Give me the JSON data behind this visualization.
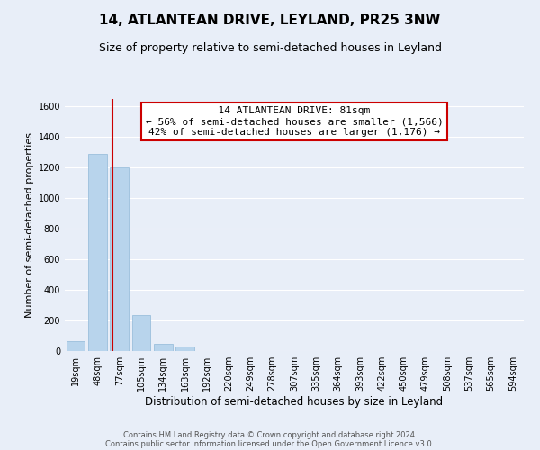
{
  "title": "14, ATLANTEAN DRIVE, LEYLAND, PR25 3NW",
  "subtitle": "Size of property relative to semi-detached houses in Leyland",
  "xlabel": "Distribution of semi-detached houses by size in Leyland",
  "ylabel": "Number of semi-detached properties",
  "footer_line1": "Contains HM Land Registry data © Crown copyright and database right 2024.",
  "footer_line2": "Contains public sector information licensed under the Open Government Licence v3.0.",
  "bar_labels": [
    "19sqm",
    "48sqm",
    "77sqm",
    "105sqm",
    "134sqm",
    "163sqm",
    "192sqm",
    "220sqm",
    "249sqm",
    "278sqm",
    "307sqm",
    "335sqm",
    "364sqm",
    "393sqm",
    "422sqm",
    "450sqm",
    "479sqm",
    "508sqm",
    "537sqm",
    "565sqm",
    "594sqm"
  ],
  "bar_values": [
    65,
    1290,
    1200,
    235,
    50,
    30,
    0,
    0,
    0,
    0,
    0,
    0,
    0,
    0,
    0,
    0,
    0,
    0,
    0,
    0,
    0
  ],
  "bar_color": "#b8d4ec",
  "bar_edge_color": "#90b8d8",
  "annotation_title": "14 ATLANTEAN DRIVE: 81sqm",
  "annotation_line1": "← 56% of semi-detached houses are smaller (1,566)",
  "annotation_line2": "42% of semi-detached houses are larger (1,176) →",
  "vline_color": "#cc0000",
  "annotation_box_color": "#ffffff",
  "annotation_box_edge": "#cc0000",
  "ylim": [
    0,
    1650
  ],
  "yticks": [
    0,
    200,
    400,
    600,
    800,
    1000,
    1200,
    1400,
    1600
  ],
  "background_color": "#e8eef8",
  "plot_background": "#e8eef8",
  "title_fontsize": 11,
  "subtitle_fontsize": 9,
  "ylabel_fontsize": 8,
  "xlabel_fontsize": 8.5,
  "tick_fontsize": 7,
  "annotation_fontsize": 8,
  "footer_fontsize": 6
}
